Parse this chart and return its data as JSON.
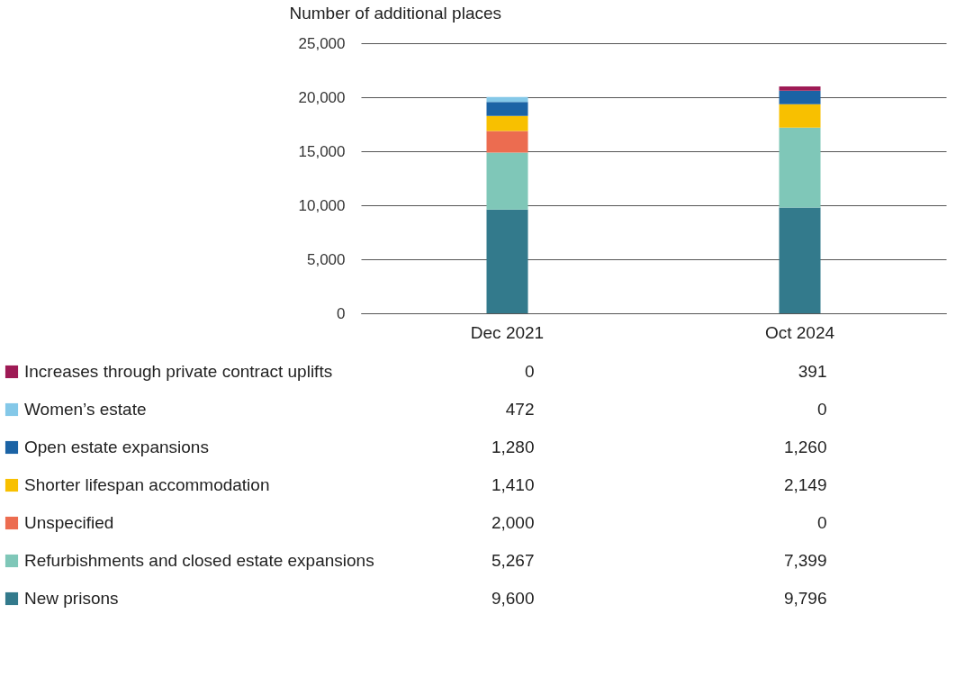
{
  "chart_data": {
    "type": "bar",
    "stacked": true,
    "ylabel": "Number of additional places",
    "categories": [
      "Dec 2021",
      "Oct 2024"
    ],
    "series": [
      {
        "name": "New prisons",
        "color": "#337a8c",
        "values": [
          9600,
          9796
        ],
        "value_labels": [
          "9,600",
          "9,796"
        ]
      },
      {
        "name": "Refurbishments and closed estate expansions",
        "color": "#7fc7b8",
        "values": [
          5267,
          7399
        ],
        "value_labels": [
          "5,267",
          "7,399"
        ]
      },
      {
        "name": "Unspecified",
        "color": "#ec6c50",
        "values": [
          2000,
          0
        ],
        "value_labels": [
          "2,000",
          "0"
        ]
      },
      {
        "name": "Shorter lifespan accommodation",
        "color": "#f8c000",
        "values": [
          1410,
          2149
        ],
        "value_labels": [
          "1,410",
          "2,149"
        ]
      },
      {
        "name": "Open estate expansions",
        "color": "#1b63a5",
        "values": [
          1280,
          1260
        ],
        "value_labels": [
          "1,280",
          "1,260"
        ]
      },
      {
        "name": "Women’s estate",
        "color": "#84c8e8",
        "values": [
          472,
          0
        ],
        "value_labels": [
          "472",
          "0"
        ]
      },
      {
        "name": "Increases through private contract uplifts",
        "color": "#9e1a55",
        "values": [
          0,
          391
        ],
        "value_labels": [
          "0",
          "391"
        ]
      }
    ],
    "ylim": [
      0,
      25000
    ],
    "yticks": [
      {
        "value": 0,
        "label": "0"
      },
      {
        "value": 5000,
        "label": "5,000"
      },
      {
        "value": 10000,
        "label": "10,000"
      },
      {
        "value": 15000,
        "label": "15,000"
      },
      {
        "value": 20000,
        "label": "20,000"
      },
      {
        "value": 25000,
        "label": "25,000"
      }
    ],
    "grid": "y",
    "legend": "bottom"
  }
}
